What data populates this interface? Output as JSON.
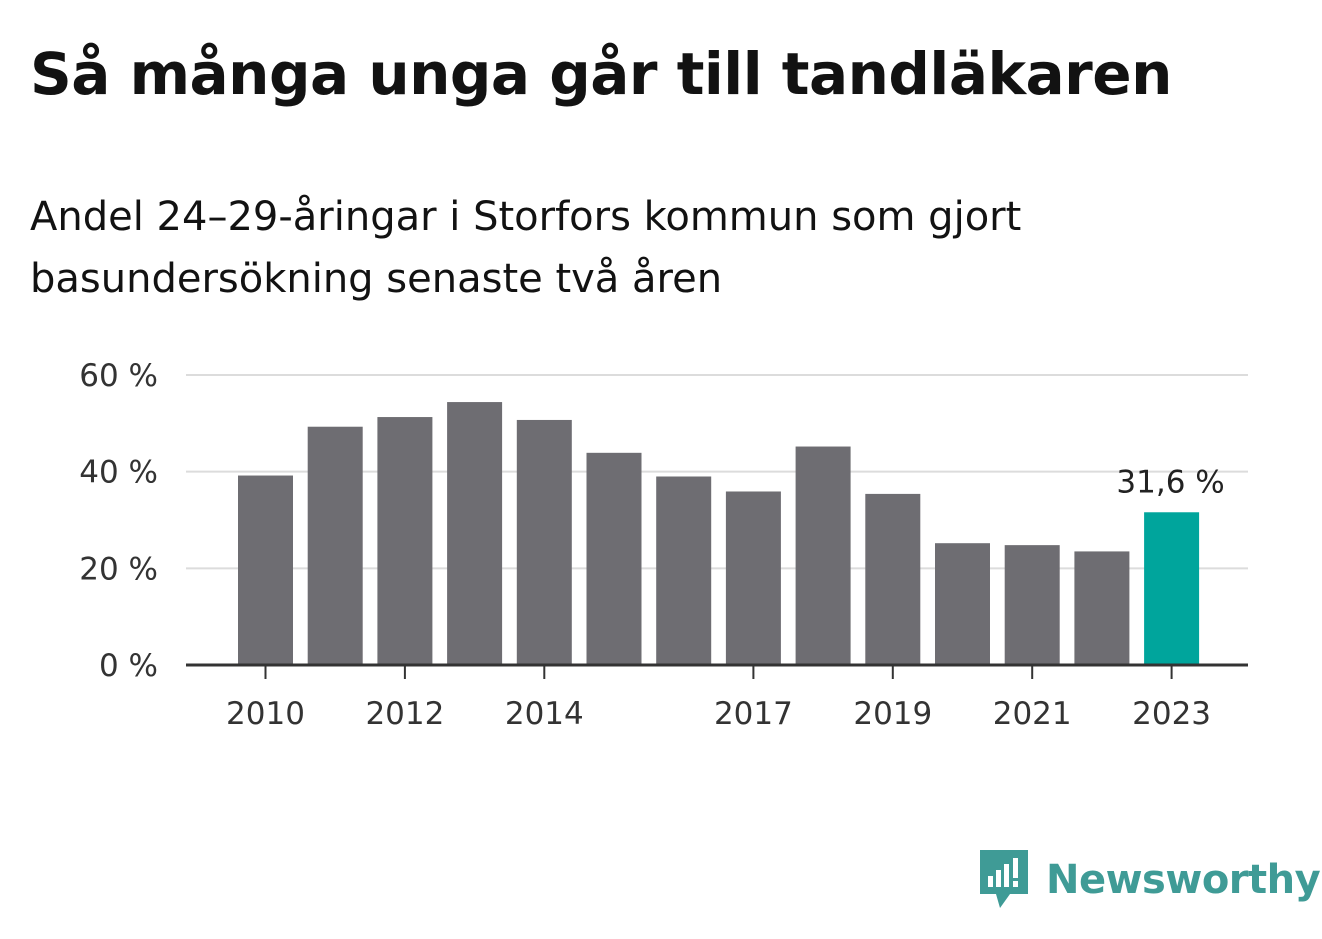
{
  "title": "Så många unga går till tandläkaren",
  "subtitle": "Andel 24–29-åringar i Storfors kommun som gjort basundersökning senaste två åren",
  "brand": {
    "name": "Newsworthy",
    "icon": "newsworthy-logo-icon",
    "color": "#3f9b96"
  },
  "colors": {
    "bar": "#6e6d72",
    "highlight": "#00a59c",
    "grid": "#dcdcdc",
    "axis": "#333333"
  },
  "chart_data": {
    "type": "bar",
    "categories": [
      "2010",
      "2011",
      "2012",
      "2013",
      "2014",
      "2015",
      "2016",
      "2017",
      "2018",
      "2019",
      "2020",
      "2021",
      "2022",
      "2023"
    ],
    "values": [
      39.2,
      49.3,
      51.3,
      54.4,
      50.7,
      43.9,
      39.0,
      35.9,
      45.2,
      35.4,
      25.2,
      24.8,
      23.5,
      31.6
    ],
    "highlight_index": 13,
    "highlight_label": "31,6 %",
    "x_tick_labels": [
      "2010",
      "2012",
      "2014",
      "2017",
      "2019",
      "2021",
      "2023"
    ],
    "y_ticks": [
      0,
      20,
      40,
      60
    ],
    "y_tick_labels": [
      "0 %",
      "20 %",
      "40 %",
      "60 %"
    ],
    "ylim": [
      0,
      60
    ],
    "grid": true,
    "legend": "none"
  }
}
